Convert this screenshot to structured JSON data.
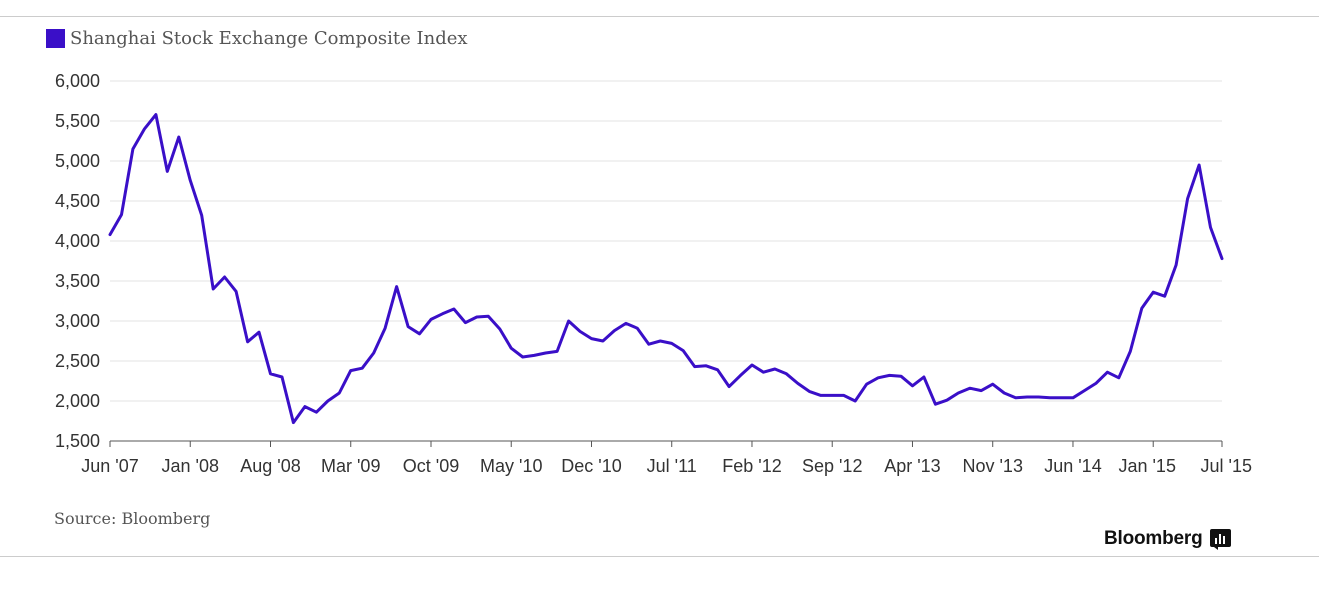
{
  "chart_data": {
    "type": "line",
    "title": "",
    "xlabel": "",
    "ylabel": "",
    "ylim": [
      1500,
      6000
    ],
    "yticks": [
      1500,
      2000,
      2500,
      3000,
      3500,
      4000,
      4500,
      5000,
      5500,
      6000
    ],
    "ytick_labels": [
      "1,500",
      "2,000",
      "2,500",
      "3,000",
      "3,500",
      "4,000",
      "4,500",
      "5,000",
      "5,500",
      "6,000"
    ],
    "xtick_labels": [
      "Jun '07",
      "Jan '08",
      "Aug '08",
      "Mar '09",
      "Oct '09",
      "May '10",
      "Dec '10",
      "Jul '11",
      "Feb '12",
      "Sep '12",
      "Apr '13",
      "Nov '13",
      "Jun '14",
      "Jan '15",
      "Jul '15"
    ],
    "xtick_month_index": [
      0,
      7,
      14,
      21,
      28,
      35,
      42,
      49,
      56,
      63,
      70,
      77,
      84,
      91,
      97
    ],
    "grid": true,
    "legend_position": "top-left",
    "series": [
      {
        "name": "Shanghai Stock Exchange Composite Index",
        "color": "#3a0fc8",
        "month_index": [
          0,
          1,
          2,
          3,
          4,
          5,
          6,
          7,
          8,
          9,
          10,
          11,
          12,
          13,
          14,
          15,
          16,
          17,
          18,
          19,
          20,
          21,
          22,
          23,
          24,
          25,
          26,
          27,
          28,
          29,
          30,
          31,
          32,
          33,
          34,
          35,
          36,
          37,
          38,
          39,
          40,
          41,
          42,
          43,
          44,
          45,
          46,
          47,
          48,
          49,
          50,
          51,
          52,
          53,
          54,
          55,
          56,
          57,
          58,
          59,
          60,
          61,
          62,
          63,
          64,
          65,
          66,
          67,
          68,
          69,
          70,
          71,
          72,
          73,
          74,
          75,
          76,
          77,
          78,
          79,
          80,
          81,
          82,
          83,
          84,
          85,
          86,
          87,
          88,
          89,
          90,
          91,
          92,
          93,
          94,
          95,
          96,
          97
        ],
        "values": [
          4080,
          4330,
          5150,
          5400,
          5580,
          4870,
          5300,
          4760,
          4320,
          3400,
          3550,
          3370,
          2740,
          2860,
          2340,
          2300,
          1730,
          1930,
          1860,
          2000,
          2100,
          2380,
          2410,
          2600,
          2910,
          3430,
          2930,
          2840,
          3020,
          3090,
          3150,
          2980,
          3050,
          3060,
          2900,
          2660,
          2550,
          2570,
          2600,
          2620,
          3000,
          2870,
          2780,
          2750,
          2880,
          2970,
          2910,
          2710,
          2750,
          2720,
          2630,
          2430,
          2440,
          2390,
          2180,
          2320,
          2450,
          2360,
          2400,
          2340,
          2220,
          2120,
          2070,
          2070,
          2070,
          2000,
          2210,
          2290,
          2320,
          2310,
          2190,
          2300,
          1960,
          2010,
          2100,
          2160,
          2130,
          2210,
          2100,
          2040,
          2050,
          2050,
          2040,
          2040,
          2040,
          2130,
          2220,
          2360,
          2290,
          2620,
          3160,
          3360,
          3310,
          3700,
          4530,
          4950,
          4170,
          3780
        ]
      }
    ]
  },
  "legend": {
    "label": "Shanghai Stock Exchange Composite Index",
    "color": "#3a0fc8"
  },
  "footer": {
    "source": "Source: Bloomberg",
    "brand": "Bloomberg"
  },
  "icons": {
    "brand_icon": "bar-chart-icon"
  }
}
